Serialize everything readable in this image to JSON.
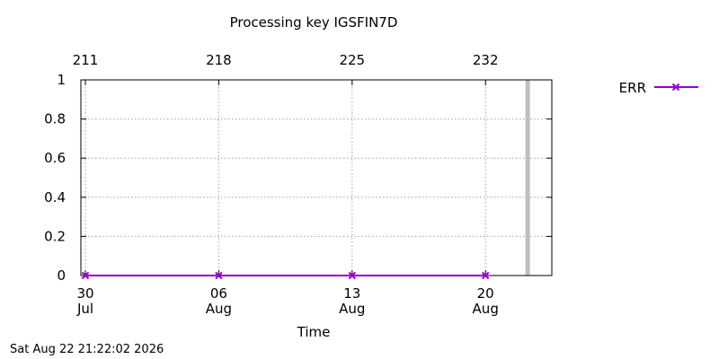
{
  "chart_data": {
    "type": "line",
    "title": "Processing key IGSFIN7D",
    "xlabel": "Time",
    "ylabel": "",
    "ylim": [
      0,
      1
    ],
    "yticks": [
      "0",
      "0.2",
      "0.4",
      "0.6",
      "0.8",
      "1"
    ],
    "x_ticks_bottom": [
      {
        "day": "30",
        "month": "Jul"
      },
      {
        "day": "06",
        "month": "Aug"
      },
      {
        "day": "13",
        "month": "Aug"
      },
      {
        "day": "20",
        "month": "Aug"
      }
    ],
    "x_ticks_top": [
      "211",
      "218",
      "225",
      "232"
    ],
    "xlim": [
      "Jul 30",
      "Aug 24"
    ],
    "grid": true,
    "legend": "top-right",
    "series": [
      {
        "name": "ERR",
        "color": "#9400d3",
        "marker": "x-cross",
        "x": [
          "Jul 30",
          "Aug 06",
          "Aug 13",
          "Aug 20"
        ],
        "values": [
          0,
          0,
          0,
          0
        ]
      }
    ],
    "current_marker": {
      "x": "Aug 22",
      "color": "#bebebe"
    }
  },
  "footer": {
    "timestamp": "Sat Aug 22 21:22:02 2026"
  }
}
